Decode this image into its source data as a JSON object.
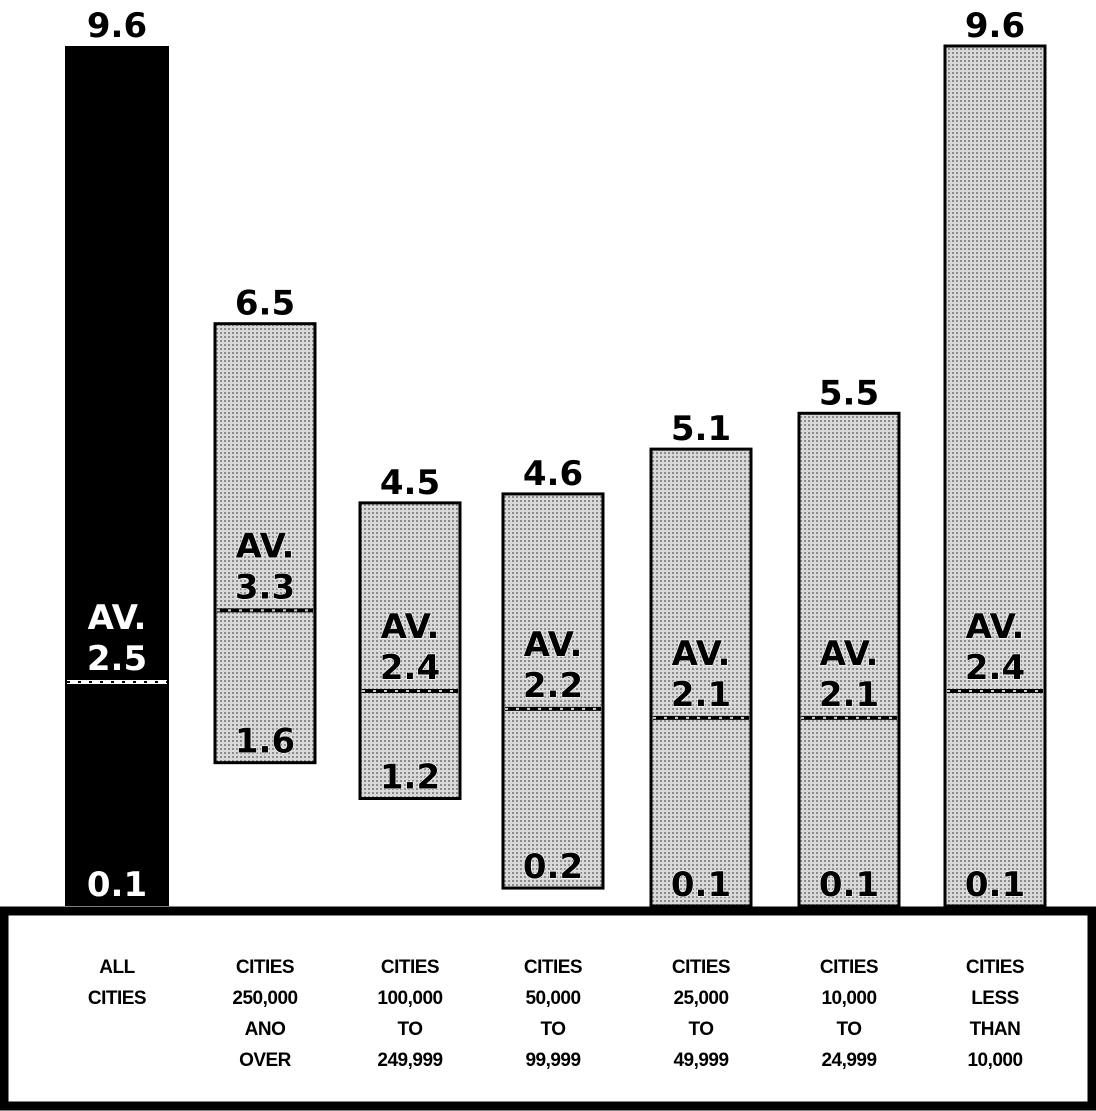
{
  "chart_data": {
    "type": "bar",
    "subtype": "range",
    "ylim": [
      0,
      9.6
    ],
    "grid": false,
    "legend": "none",
    "av_label": "AV.",
    "colors": {
      "highlight": "#000000",
      "default_fill": "#cfcfcf",
      "text_on_dark": "#ffffff",
      "text_on_light": "#000000"
    },
    "categories": [
      {
        "label": [
          "ALL",
          "CITIES"
        ],
        "min": 0.1,
        "max": 9.6,
        "avg": 2.5,
        "min_label": "0.1",
        "max_label": "9.6",
        "avg_label": "2.5",
        "highlight": true
      },
      {
        "label": [
          "CITIES",
          "250,000",
          "ANO",
          "OVER"
        ],
        "min": 1.6,
        "max": 6.5,
        "avg": 3.3,
        "min_label": "1.6",
        "max_label": "6.5",
        "avg_label": "3.3",
        "highlight": false
      },
      {
        "label": [
          "CITIES",
          "100,000",
          "TO",
          "249,999"
        ],
        "min": 1.2,
        "max": 4.5,
        "avg": 2.4,
        "min_label": "1.2",
        "max_label": "4.5",
        "avg_label": "2.4",
        "highlight": false
      },
      {
        "label": [
          "CITIES",
          "50,000",
          "TO",
          "99,999"
        ],
        "min": 0.2,
        "max": 4.6,
        "avg": 2.2,
        "min_label": "0.2",
        "max_label": "4.6",
        "avg_label": "2.2",
        "highlight": false
      },
      {
        "label": [
          "CITIES",
          "25,000",
          "TO",
          "49,999"
        ],
        "min": 0.1,
        "max": 5.1,
        "avg": 2.1,
        "min_label": "0.1",
        "max_label": "5.1",
        "avg_label": "2.1",
        "highlight": false
      },
      {
        "label": [
          "CITIES",
          "10,000",
          "TO",
          "24,999"
        ],
        "min": 0.1,
        "max": 5.5,
        "avg": 2.1,
        "min_label": "0.1",
        "max_label": "5.5",
        "avg_label": "2.1",
        "highlight": false
      },
      {
        "label": [
          "CITIES",
          "LESS",
          "THAN",
          "10,000"
        ],
        "min": 0.1,
        "max": 9.6,
        "avg": 2.4,
        "min_label": "0.1",
        "max_label": "9.6",
        "avg_label": "2.4",
        "highlight": false
      }
    ]
  }
}
